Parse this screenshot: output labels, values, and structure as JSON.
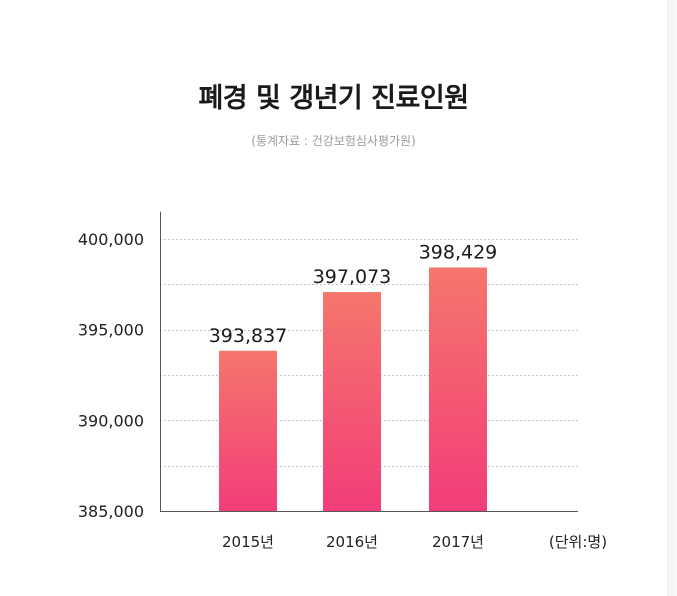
{
  "title": "폐경 및 갱년기 진료인원",
  "subtitle": "(통계자료 : 건강보험심사평가원)",
  "unit_note": "(단위:명)",
  "colors": {
    "bar_top": "#f5766c",
    "bar_bottom": "#f23d79",
    "grid": "#b5b5b5",
    "axis": "#555555"
  },
  "chart_data": {
    "type": "bar",
    "categories": [
      "2015년",
      "2016년",
      "2017년"
    ],
    "values": [
      393837,
      397073,
      398429
    ],
    "value_labels": [
      "393,837",
      "397,073",
      "398,429"
    ],
    "yticks": [
      385000,
      390000,
      395000,
      400000
    ],
    "ytick_labels": [
      "385,000",
      "390,000",
      "395,000",
      "400,000"
    ],
    "ylim": [
      385000,
      401500
    ],
    "grid": true,
    "gridlines": [
      387500,
      390000,
      392500,
      395000,
      397500,
      400000
    ]
  }
}
